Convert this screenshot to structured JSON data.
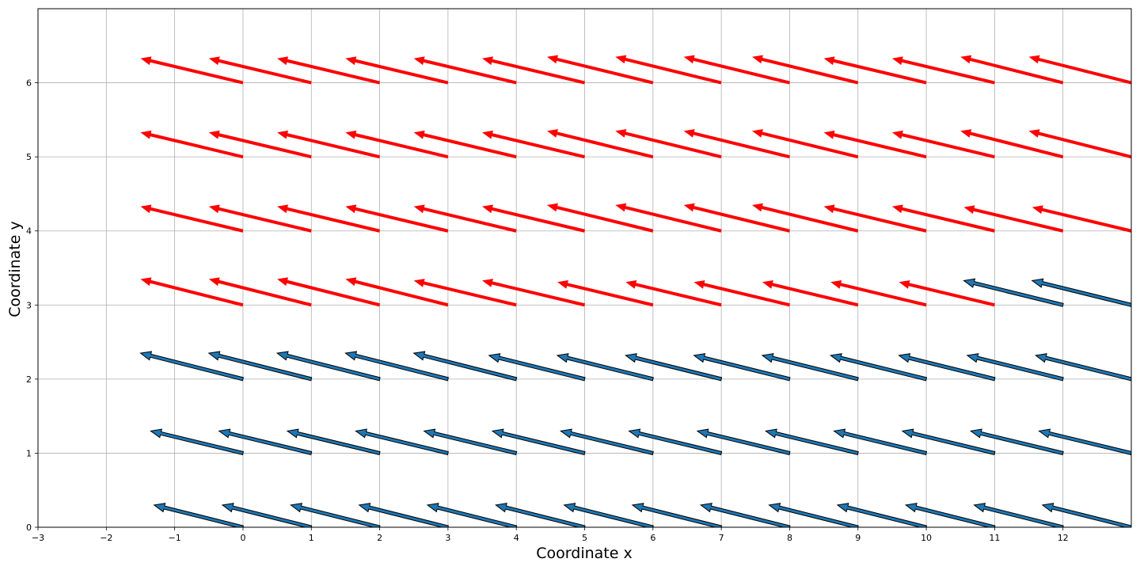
{
  "chart_data": {
    "type": "quiver",
    "title": "",
    "xlabel": "Coordinate x",
    "ylabel": "Coordinate y",
    "xlim": [
      -3,
      13
    ],
    "ylim": [
      0,
      7
    ],
    "grid": true,
    "xticks": [
      -3,
      -2,
      -1,
      0,
      1,
      2,
      3,
      4,
      5,
      6,
      7,
      8,
      9,
      10,
      11,
      12
    ],
    "yticks": [
      0,
      1,
      2,
      3,
      4,
      5,
      6
    ],
    "colors": {
      "red": "#ff0000",
      "blue_fill": "#1f77b4",
      "blue_edge": "#000000",
      "grid": "#b0b0b0"
    },
    "series": [
      {
        "style": "red",
        "y": 6,
        "x": [
          0,
          1,
          2,
          3,
          4,
          5,
          6,
          7,
          8,
          9,
          10,
          11,
          12,
          13
        ],
        "u": [
          -1.5,
          -1.5,
          -1.5,
          -1.5,
          -1.5,
          -1.5,
          -1.55,
          -1.55,
          -1.55,
          -1.55,
          -1.5,
          -1.5,
          -1.5,
          -1.5
        ],
        "v": [
          0.33,
          0.33,
          0.33,
          0.33,
          0.33,
          0.33,
          0.35,
          0.35,
          0.35,
          0.35,
          0.33,
          0.33,
          0.35,
          0.35
        ]
      },
      {
        "style": "red",
        "y": 5,
        "x": [
          0,
          1,
          2,
          3,
          4,
          5,
          6,
          7,
          8,
          9,
          10,
          11,
          12,
          13
        ],
        "u": [
          -1.5,
          -1.5,
          -1.5,
          -1.5,
          -1.5,
          -1.5,
          -1.55,
          -1.55,
          -1.55,
          -1.55,
          -1.5,
          -1.5,
          -1.5,
          -1.5
        ],
        "v": [
          0.33,
          0.33,
          0.33,
          0.33,
          0.33,
          0.33,
          0.35,
          0.35,
          0.35,
          0.35,
          0.33,
          0.33,
          0.35,
          0.35
        ]
      },
      {
        "style": "red",
        "y": 4,
        "x": [
          0,
          1,
          2,
          3,
          4,
          5,
          6,
          7,
          8,
          9,
          10,
          11,
          12,
          13
        ],
        "u": [
          -1.5,
          -1.5,
          -1.5,
          -1.5,
          -1.5,
          -1.5,
          -1.55,
          -1.55,
          -1.55,
          -1.55,
          -1.5,
          -1.5,
          -1.45,
          -1.45
        ],
        "v": [
          0.33,
          0.33,
          0.33,
          0.33,
          0.33,
          0.33,
          0.35,
          0.35,
          0.35,
          0.35,
          0.33,
          0.33,
          0.32,
          0.32
        ]
      },
      {
        "style": "red",
        "y": 3,
        "x": [
          0,
          1,
          2,
          3,
          4,
          5,
          6,
          7,
          8,
          9,
          10,
          11
        ],
        "u": [
          -1.5,
          -1.5,
          -1.5,
          -1.5,
          -1.5,
          -1.5,
          -1.4,
          -1.4,
          -1.4,
          -1.4,
          -1.4,
          -1.4
        ],
        "v": [
          0.35,
          0.35,
          0.35,
          0.35,
          0.33,
          0.33,
          0.31,
          0.31,
          0.31,
          0.31,
          0.31,
          0.31
        ]
      },
      {
        "style": "blue",
        "y": 3,
        "x": [
          12,
          13
        ],
        "u": [
          -1.45,
          -1.45
        ],
        "v": [
          0.33,
          0.33
        ]
      },
      {
        "style": "blue",
        "y": 2,
        "x": [
          0,
          1,
          2,
          3,
          4,
          5,
          6,
          7,
          8,
          9,
          10,
          11,
          12,
          13
        ],
        "u": [
          -1.5,
          -1.5,
          -1.5,
          -1.5,
          -1.5,
          -1.4,
          -1.4,
          -1.4,
          -1.4,
          -1.4,
          -1.4,
          -1.4,
          -1.4,
          -1.4
        ],
        "v": [
          0.35,
          0.35,
          0.35,
          0.35,
          0.35,
          0.32,
          0.32,
          0.32,
          0.32,
          0.32,
          0.32,
          0.32,
          0.32,
          0.32
        ]
      },
      {
        "style": "blue",
        "y": 1,
        "x": [
          0,
          1,
          2,
          3,
          4,
          5,
          6,
          7,
          8,
          9,
          10,
          11,
          12,
          13
        ],
        "u": [
          -1.35,
          -1.35,
          -1.35,
          -1.35,
          -1.35,
          -1.35,
          -1.35,
          -1.35,
          -1.35,
          -1.35,
          -1.35,
          -1.35,
          -1.35,
          -1.35
        ],
        "v": [
          0.3,
          0.3,
          0.3,
          0.3,
          0.3,
          0.3,
          0.3,
          0.3,
          0.3,
          0.3,
          0.3,
          0.3,
          0.3,
          0.3
        ]
      },
      {
        "style": "blue",
        "y": 0,
        "x": [
          0,
          1,
          2,
          3,
          4,
          5,
          6,
          7,
          8,
          9,
          10,
          11,
          12,
          13
        ],
        "u": [
          -1.3,
          -1.3,
          -1.3,
          -1.3,
          -1.3,
          -1.3,
          -1.3,
          -1.3,
          -1.3,
          -1.3,
          -1.3,
          -1.3,
          -1.3,
          -1.3
        ],
        "v": [
          0.3,
          0.3,
          0.3,
          0.3,
          0.3,
          0.3,
          0.3,
          0.3,
          0.3,
          0.3,
          0.3,
          0.3,
          0.3,
          0.3
        ]
      }
    ]
  }
}
